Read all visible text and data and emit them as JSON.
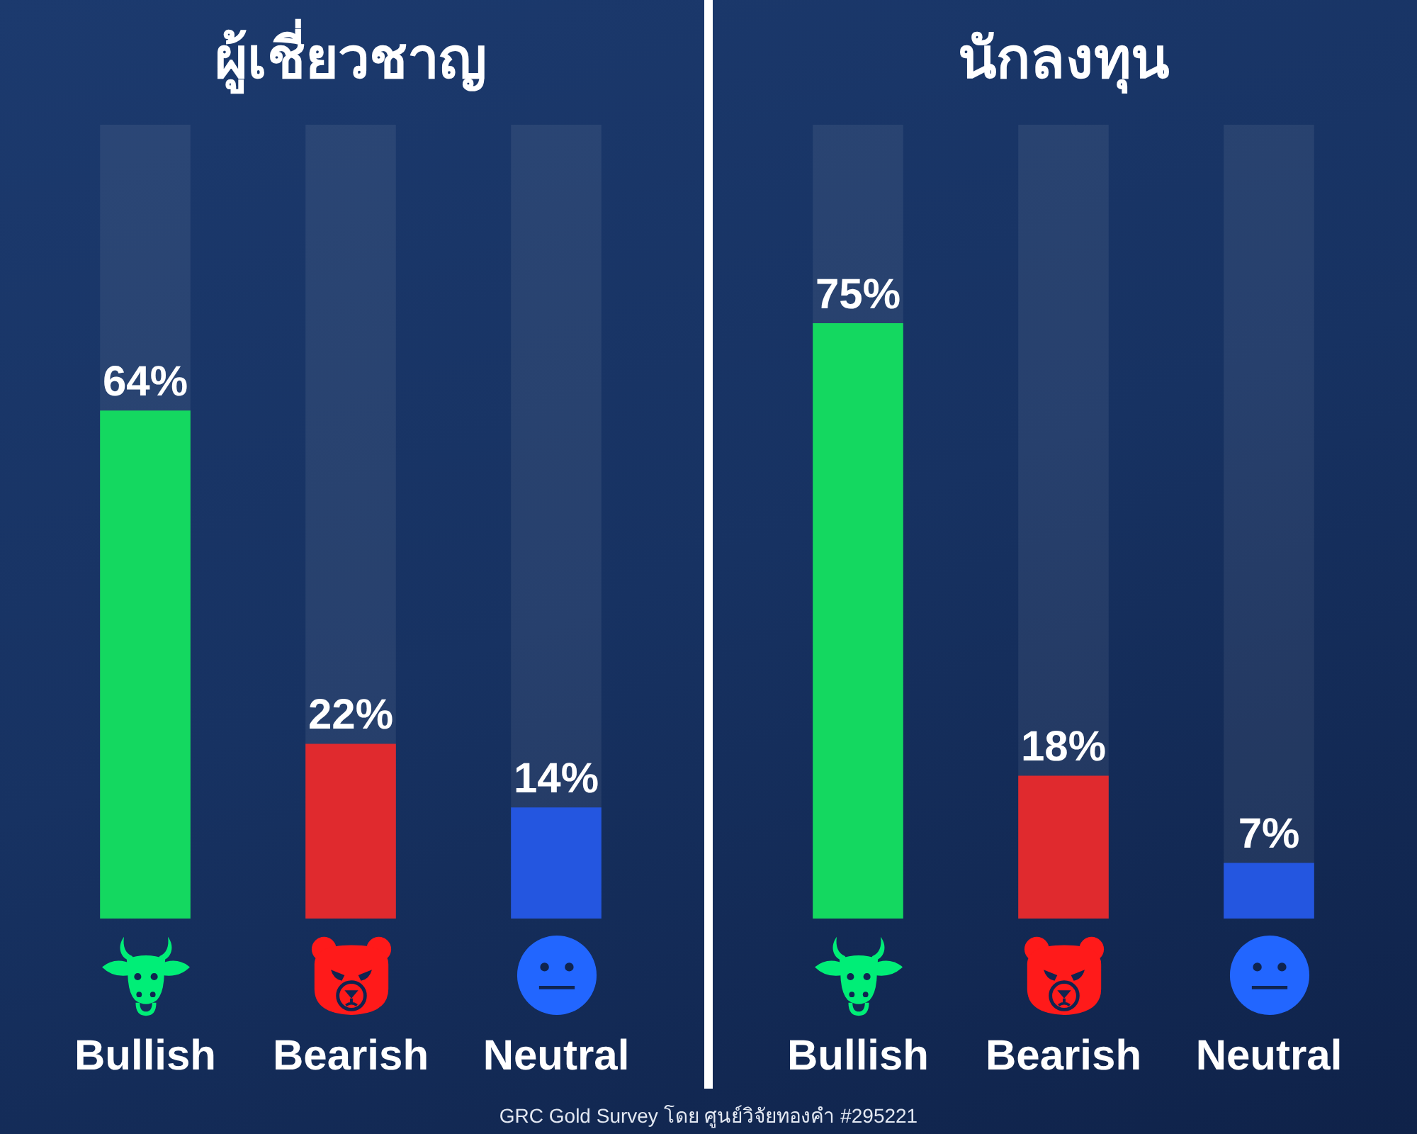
{
  "chart_data": [
    {
      "type": "bar",
      "title": "ผู้เชี่ยวชาญ",
      "categories": [
        "Bullish",
        "Bearish",
        "Neutral"
      ],
      "values": [
        64,
        22,
        14
      ],
      "colors": [
        "#14d860",
        "#e02a2e",
        "#2456e0"
      ],
      "value_labels": [
        "64%",
        "22%",
        "14%"
      ],
      "ylim": [
        0,
        100
      ],
      "tick_labels": "x",
      "annotations": [
        "GRC Gold Survey โดย ศูนย์วิจัยทองคำ #295221"
      ]
    },
    {
      "type": "bar",
      "title": "นักลงทุน",
      "categories": [
        "Bullish",
        "Bearish",
        "Neutral"
      ],
      "values": [
        75,
        18,
        7
      ],
      "colors": [
        "#14d860",
        "#e02a2e",
        "#2456e0"
      ],
      "value_labels": [
        "75%",
        "18%",
        "7%"
      ],
      "ylim": [
        0,
        100
      ],
      "tick_labels": "x"
    }
  ]
}
